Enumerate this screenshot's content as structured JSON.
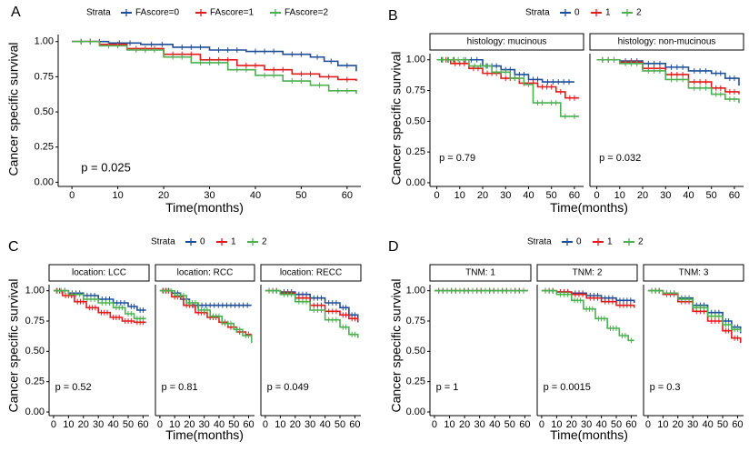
{
  "colors": {
    "group0": "#1f4e99",
    "group1": "#e31a1c",
    "group2": "#4caf50",
    "axis": "#000000",
    "text": "#000000"
  },
  "chart_data": [
    {
      "type": "line",
      "subtype": "kaplan-meier",
      "panel_letter": "A",
      "legend": {
        "title": "Strata",
        "position": "top",
        "entries": [
          "FAscore=0",
          "FAscore=1",
          "FAscore=2"
        ]
      },
      "xlabel": "Time(months)",
      "ylabel": "Cancer specific survival",
      "xlim": [
        -3,
        63
      ],
      "ylim": [
        -0.03,
        1.05
      ],
      "x_ticks": [
        0,
        10,
        20,
        30,
        40,
        50,
        60
      ],
      "y_ticks": [
        0.0,
        0.25,
        0.5,
        0.75,
        1.0
      ],
      "x_tick_labels": [
        "0",
        "10",
        "20",
        "30",
        "40",
        "50",
        "60"
      ],
      "y_tick_labels": [
        "0.00",
        "0.25",
        "0.50",
        "0.75",
        "1.00"
      ],
      "facets": [
        {
          "strip": "",
          "pvalue": "p = 0.025",
          "pvalue_pos": [
            2,
            0.1
          ],
          "series": [
            {
              "name": "FAscore=0",
              "x": [
                0,
                8,
                15,
                22,
                30,
                38,
                46,
                52,
                55,
                58,
                62
              ],
              "y": [
                1.0,
                0.99,
                0.98,
                0.96,
                0.94,
                0.93,
                0.91,
                0.89,
                0.86,
                0.83,
                0.79
              ]
            },
            {
              "name": "FAscore=1",
              "x": [
                0,
                6,
                12,
                20,
                28,
                36,
                42,
                48,
                54,
                58,
                62
              ],
              "y": [
                1.0,
                0.98,
                0.95,
                0.91,
                0.87,
                0.83,
                0.8,
                0.77,
                0.75,
                0.73,
                0.72
              ]
            },
            {
              "name": "FAscore=2",
              "x": [
                0,
                6,
                12,
                20,
                26,
                34,
                40,
                46,
                52,
                56,
                62
              ],
              "y": [
                1.0,
                0.97,
                0.94,
                0.89,
                0.85,
                0.8,
                0.76,
                0.72,
                0.69,
                0.65,
                0.63
              ]
            }
          ]
        }
      ]
    },
    {
      "type": "line",
      "subtype": "kaplan-meier",
      "panel_letter": "B",
      "legend": {
        "title": "Strata",
        "position": "top",
        "entries": [
          "0",
          "1",
          "2"
        ]
      },
      "xlabel": "Time(months)",
      "ylabel": "Cancer specific survival",
      "xlim": [
        -3,
        64
      ],
      "ylim": [
        -0.03,
        1.05
      ],
      "x_ticks": [
        0,
        10,
        20,
        30,
        40,
        50,
        60
      ],
      "y_ticks": [
        0.0,
        0.25,
        0.5,
        0.75,
        1.0
      ],
      "x_tick_labels": [
        "0",
        "10",
        "20",
        "30",
        "40",
        "50",
        "60"
      ],
      "y_tick_labels": [
        "0.00",
        "0.25",
        "0.50",
        "0.75",
        "1.00"
      ],
      "facets": [
        {
          "strip": "histology: mucinous",
          "pvalue": "p = 0.79",
          "pvalue_pos": [
            1,
            0.2
          ],
          "series": [
            {
              "name": "0",
              "x": [
                0,
                10,
                20,
                28,
                34,
                40,
                46,
                60
              ],
              "y": [
                1.0,
                1.0,
                0.95,
                0.92,
                0.88,
                0.84,
                0.82,
                0.82
              ]
            },
            {
              "name": "1",
              "x": [
                0,
                6,
                14,
                20,
                28,
                36,
                44,
                52,
                56,
                62
              ],
              "y": [
                1.0,
                0.97,
                0.93,
                0.89,
                0.85,
                0.81,
                0.78,
                0.74,
                0.69,
                0.69
              ]
            },
            {
              "name": "2",
              "x": [
                0,
                14,
                24,
                32,
                38,
                42,
                48,
                54,
                58,
                62
              ],
              "y": [
                1.0,
                0.95,
                0.9,
                0.85,
                0.8,
                0.65,
                0.65,
                0.54,
                0.54,
                0.54
              ]
            }
          ]
        },
        {
          "strip": "histology: non-mucinous",
          "pvalue": "p = 0.032",
          "pvalue_pos": [
            1,
            0.2
          ],
          "series": [
            {
              "name": "0",
              "x": [
                0,
                10,
                20,
                30,
                40,
                50,
                56,
                62
              ],
              "y": [
                1.0,
                0.99,
                0.97,
                0.94,
                0.91,
                0.89,
                0.85,
                0.79
              ]
            },
            {
              "name": "1",
              "x": [
                0,
                10,
                20,
                30,
                40,
                50,
                56,
                62
              ],
              "y": [
                1.0,
                0.98,
                0.93,
                0.88,
                0.82,
                0.77,
                0.74,
                0.72
              ]
            },
            {
              "name": "2",
              "x": [
                0,
                10,
                20,
                30,
                40,
                50,
                56,
                62
              ],
              "y": [
                1.0,
                0.97,
                0.91,
                0.84,
                0.77,
                0.72,
                0.68,
                0.65
              ]
            }
          ]
        }
      ]
    },
    {
      "type": "line",
      "subtype": "kaplan-meier",
      "panel_letter": "C",
      "legend": {
        "title": "Strata",
        "position": "top",
        "entries": [
          "0",
          "1",
          "2"
        ]
      },
      "xlabel": "Time(months)",
      "ylabel": "Cancer specific survival",
      "xlim": [
        -3,
        64
      ],
      "ylim": [
        -0.03,
        1.05
      ],
      "x_ticks": [
        0,
        10,
        20,
        30,
        40,
        50,
        60
      ],
      "y_ticks": [
        0.0,
        0.25,
        0.5,
        0.75,
        1.0
      ],
      "x_tick_labels": [
        "0",
        "10",
        "20",
        "30",
        "40",
        "50",
        "60"
      ],
      "y_tick_labels": [
        "0.00",
        "0.25",
        "0.50",
        "0.75",
        "1.00"
      ],
      "facets": [
        {
          "strip": "location: LCC",
          "pvalue": "p = 0.52",
          "pvalue_pos": [
            1,
            0.2
          ],
          "series": [
            {
              "name": "0",
              "x": [
                0,
                10,
                20,
                30,
                40,
                50,
                56,
                62
              ],
              "y": [
                1.0,
                0.98,
                0.96,
                0.93,
                0.9,
                0.87,
                0.84,
                0.84
              ]
            },
            {
              "name": "1",
              "x": [
                0,
                6,
                14,
                22,
                30,
                38,
                46,
                54,
                62
              ],
              "y": [
                1.0,
                0.96,
                0.91,
                0.86,
                0.82,
                0.78,
                0.75,
                0.74,
                0.74
              ]
            },
            {
              "name": "2",
              "x": [
                0,
                10,
                20,
                30,
                40,
                48,
                54,
                62
              ],
              "y": [
                1.0,
                0.97,
                0.93,
                0.9,
                0.86,
                0.81,
                0.77,
                0.77
              ]
            }
          ]
        },
        {
          "strip": "location: RCC",
          "pvalue": "p = 0.81",
          "pvalue_pos": [
            1,
            0.2
          ],
          "series": [
            {
              "name": "0",
              "x": [
                0,
                8,
                14,
                20,
                62
              ],
              "y": [
                1.0,
                0.98,
                0.93,
                0.88,
                0.88
              ]
            },
            {
              "name": "1",
              "x": [
                0,
                8,
                16,
                24,
                32,
                40,
                46,
                52,
                58,
                62
              ],
              "y": [
                1.0,
                0.95,
                0.88,
                0.82,
                0.78,
                0.74,
                0.7,
                0.66,
                0.64,
                0.64
              ]
            },
            {
              "name": "2",
              "x": [
                0,
                10,
                18,
                26,
                34,
                42,
                50,
                56,
                62
              ],
              "y": [
                1.0,
                0.96,
                0.9,
                0.84,
                0.79,
                0.73,
                0.68,
                0.63,
                0.57
              ]
            }
          ]
        },
        {
          "strip": "location: RECC",
          "pvalue": "p = 0.049",
          "pvalue_pos": [
            1,
            0.2
          ],
          "series": [
            {
              "name": "0",
              "x": [
                0,
                10,
                20,
                30,
                40,
                50,
                56,
                62
              ],
              "y": [
                1.0,
                0.99,
                0.97,
                0.94,
                0.9,
                0.86,
                0.8,
                0.74
              ]
            },
            {
              "name": "1",
              "x": [
                0,
                10,
                20,
                30,
                40,
                50,
                56,
                62
              ],
              "y": [
                1.0,
                0.98,
                0.94,
                0.88,
                0.83,
                0.8,
                0.77,
                0.75
              ]
            },
            {
              "name": "2",
              "x": [
                0,
                10,
                20,
                30,
                40,
                50,
                56,
                62
              ],
              "y": [
                1.0,
                0.97,
                0.91,
                0.84,
                0.76,
                0.7,
                0.64,
                0.61
              ]
            }
          ]
        }
      ]
    },
    {
      "type": "line",
      "subtype": "kaplan-meier",
      "panel_letter": "D",
      "legend": {
        "title": "Strata",
        "position": "top",
        "entries": [
          "0",
          "1",
          "2"
        ]
      },
      "xlabel": "Time(months)",
      "ylabel": "Cancer specific survival",
      "xlim": [
        -3,
        64
      ],
      "ylim": [
        -0.03,
        1.05
      ],
      "x_ticks": [
        0,
        10,
        20,
        30,
        40,
        50,
        60
      ],
      "y_ticks": [
        0.0,
        0.25,
        0.5,
        0.75,
        1.0
      ],
      "x_tick_labels": [
        "0",
        "10",
        "20",
        "30",
        "40",
        "50",
        "60"
      ],
      "y_tick_labels": [
        "0.00",
        "0.25",
        "0.50",
        "0.75",
        "1.00"
      ],
      "facets": [
        {
          "strip": "TNM: 1",
          "pvalue": "p = 1",
          "pvalue_pos": [
            1,
            0.2
          ],
          "series": [
            {
              "name": "0",
              "x": [
                0,
                62
              ],
              "y": [
                1.0,
                1.0
              ]
            },
            {
              "name": "1",
              "x": [
                0,
                62
              ],
              "y": [
                1.0,
                1.0
              ]
            },
            {
              "name": "2",
              "x": [
                0,
                62
              ],
              "y": [
                1.0,
                1.0
              ]
            }
          ]
        },
        {
          "strip": "TNM: 2",
          "pvalue": "p = 0.0015",
          "pvalue_pos": [
            1,
            0.2
          ],
          "series": [
            {
              "name": "0",
              "x": [
                0,
                10,
                20,
                30,
                40,
                50,
                62
              ],
              "y": [
                1.0,
                0.99,
                0.98,
                0.96,
                0.94,
                0.92,
                0.9
              ]
            },
            {
              "name": "1",
              "x": [
                0,
                10,
                20,
                30,
                40,
                50,
                62
              ],
              "y": [
                1.0,
                0.99,
                0.97,
                0.94,
                0.91,
                0.88,
                0.86
              ]
            },
            {
              "name": "2",
              "x": [
                0,
                10,
                20,
                28,
                36,
                44,
                52,
                58,
                62
              ],
              "y": [
                1.0,
                0.97,
                0.92,
                0.85,
                0.77,
                0.69,
                0.63,
                0.59,
                0.59
              ]
            }
          ]
        },
        {
          "strip": "TNM: 3",
          "pvalue": "p = 0.3",
          "pvalue_pos": [
            1,
            0.2
          ],
          "series": [
            {
              "name": "0",
              "x": [
                0,
                10,
                20,
                30,
                40,
                50,
                56,
                62
              ],
              "y": [
                1.0,
                0.98,
                0.94,
                0.88,
                0.82,
                0.75,
                0.7,
                0.65
              ]
            },
            {
              "name": "1",
              "x": [
                0,
                10,
                20,
                30,
                40,
                50,
                56,
                62
              ],
              "y": [
                1.0,
                0.97,
                0.91,
                0.83,
                0.75,
                0.67,
                0.61,
                0.57
              ]
            },
            {
              "name": "2",
              "x": [
                0,
                10,
                20,
                30,
                40,
                50,
                56,
                62
              ],
              "y": [
                1.0,
                0.98,
                0.93,
                0.86,
                0.79,
                0.72,
                0.68,
                0.66
              ]
            }
          ]
        }
      ]
    }
  ]
}
